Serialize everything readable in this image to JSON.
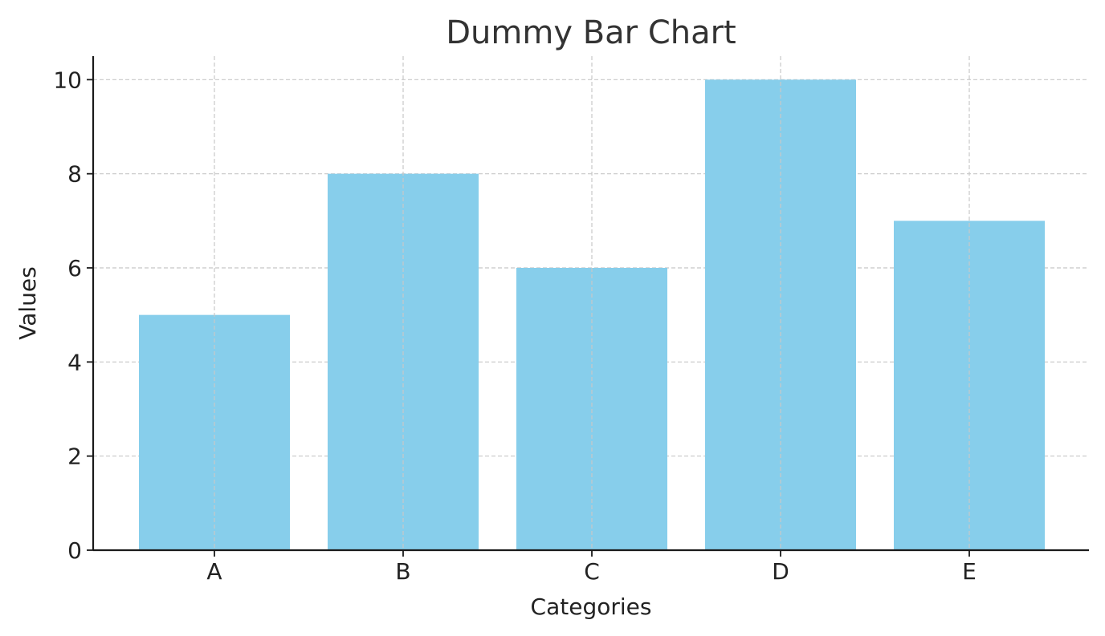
{
  "chart_data": {
    "type": "bar",
    "title": "Dummy Bar Chart",
    "xlabel": "Categories",
    "ylabel": "Values",
    "categories": [
      "A",
      "B",
      "C",
      "D",
      "E"
    ],
    "values": [
      5,
      8,
      6,
      10,
      7
    ],
    "ylim": [
      0,
      10.5
    ],
    "yticks": [
      0,
      2,
      4,
      6,
      8,
      10
    ],
    "grid": true,
    "bar_color": "#87CEEB"
  }
}
